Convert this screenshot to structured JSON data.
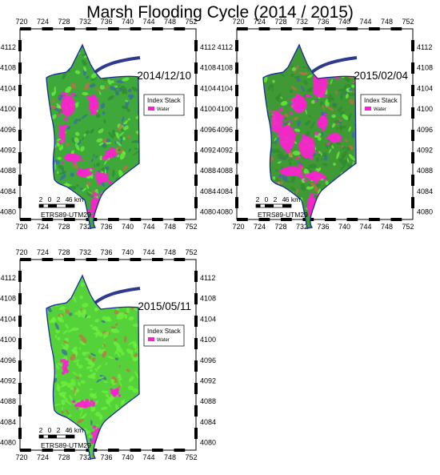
{
  "title": "Marsh Flooding Cycle (2014 / 2015)",
  "x_ticks": [
    "720",
    "724",
    "728",
    "732",
    "736",
    "740",
    "744",
    "748",
    "752"
  ],
  "y_ticks": [
    "4112",
    "4108",
    "4104",
    "4100",
    "4096",
    "4092",
    "4088",
    "4084",
    "4080"
  ],
  "legend": {
    "title": "Index Stack",
    "item": "Water"
  },
  "scalebar": {
    "labels": [
      "2",
      "0",
      "2",
      "4",
      "6 km"
    ],
    "crs": "ETRS89-UTM29"
  },
  "colors": {
    "water": "#ff1fd2",
    "vegetation": "#3ea83a",
    "bright_vegetation": "#63e03a",
    "outline": "#1b2a9c"
  },
  "panels": [
    {
      "date": "2014/12/10",
      "water_cover": "low"
    },
    {
      "date": "2015/02/04",
      "water_cover": "high"
    },
    {
      "date": "2015/05/11",
      "water_cover": "very low"
    }
  ]
}
